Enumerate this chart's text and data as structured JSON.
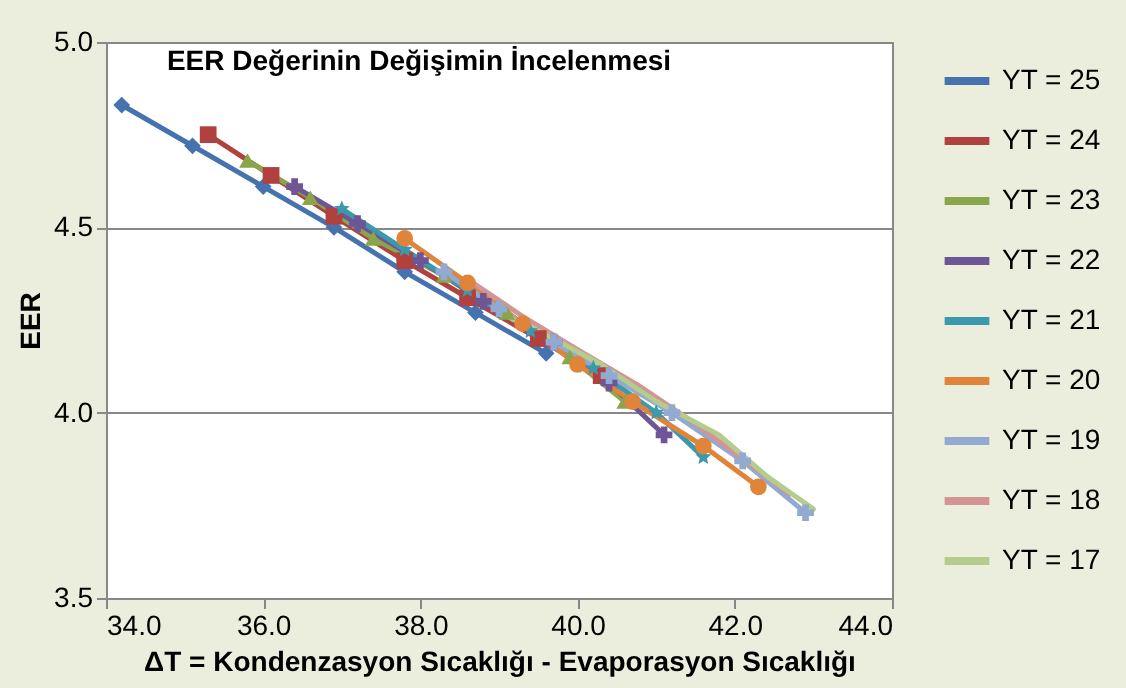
{
  "chart_data": {
    "type": "line",
    "title": "EER Değerinin Değişimin  İncelenmesi",
    "xlabel": "ΔT = Kondenzasyon Sıcaklığı  -  Evaporasyon Sıcaklığı",
    "ylabel": "EER",
    "xlim": [
      34,
      44
    ],
    "xticks": [
      {
        "value": 34,
        "label": "34.0"
      },
      {
        "value": 36,
        "label": "36.0"
      },
      {
        "value": 38,
        "label": "38.0"
      },
      {
        "value": 40,
        "label": "40.0"
      },
      {
        "value": 42,
        "label": "42.0"
      },
      {
        "value": 44,
        "label": "44.0"
      }
    ],
    "ylim": [
      3.5,
      5.0
    ],
    "yticks": [
      3.5,
      {
        "value": 4.0,
        "label": "4.0"
      },
      4.5,
      {
        "value": 5.0,
        "label": "5.0"
      }
    ],
    "grid": "y",
    "legend": "right",
    "series": [
      {
        "name": "YT = 25",
        "color": "#4672b0",
        "marker": "diamond",
        "x": [
          34.2,
          35.1,
          36.0,
          36.9,
          37.8,
          38.7,
          39.6
        ],
        "values": [
          4.83,
          4.72,
          4.61,
          4.5,
          4.38,
          4.27,
          4.16
        ]
      },
      {
        "name": "YT = 24",
        "color": "#b0413e",
        "marker": "square",
        "x": [
          35.3,
          36.1,
          36.9,
          37.8,
          38.6,
          39.5,
          40.3
        ],
        "values": [
          4.75,
          4.64,
          4.53,
          4.41,
          4.31,
          4.2,
          4.1
        ]
      },
      {
        "name": "YT = 23",
        "color": "#8aa64a",
        "marker": "triangle",
        "x": [
          35.8,
          36.6,
          37.4,
          38.3,
          39.1,
          39.9,
          40.6
        ],
        "values": [
          4.68,
          4.58,
          4.47,
          4.37,
          4.27,
          4.15,
          4.03
        ]
      },
      {
        "name": "YT = 22",
        "color": "#6e5596",
        "marker": "cross",
        "x": [
          36.4,
          37.2,
          38.0,
          38.8,
          39.7,
          40.4,
          41.1
        ],
        "values": [
          4.61,
          4.51,
          4.41,
          4.3,
          4.19,
          4.08,
          3.94
        ]
      },
      {
        "name": "YT = 21",
        "color": "#3b99ad",
        "marker": "star",
        "x": [
          37.0,
          37.8,
          38.6,
          39.4,
          40.2,
          41.0,
          41.6
        ],
        "values": [
          4.55,
          4.44,
          4.33,
          4.22,
          4.12,
          4.0,
          3.88
        ]
      },
      {
        "name": "YT = 20",
        "color": "#e0843a",
        "marker": "circle",
        "x": [
          37.8,
          38.6,
          39.3,
          40.0,
          40.7,
          41.6,
          42.3
        ],
        "values": [
          4.47,
          4.35,
          4.24,
          4.13,
          4.03,
          3.91,
          3.8
        ]
      },
      {
        "name": "YT = 19",
        "color": "#92a9d2",
        "marker": "cross",
        "x": [
          38.3,
          39.0,
          39.7,
          40.4,
          41.2,
          42.1,
          42.9
        ],
        "values": [
          4.38,
          4.28,
          4.19,
          4.1,
          4.0,
          3.87,
          3.73
        ]
      },
      {
        "name": "YT = 18",
        "color": "#d39594",
        "marker": "none",
        "x": [
          38.6,
          39.3,
          40.0,
          40.8,
          41.5,
          42.2,
          42.7
        ],
        "values": [
          4.36,
          4.26,
          4.17,
          4.07,
          3.97,
          3.86,
          3.78
        ]
      },
      {
        "name": "YT = 17",
        "color": "#b4cc8c",
        "marker": "none",
        "x": [
          39.0,
          39.6,
          40.3,
          41.0,
          41.8,
          42.4,
          43.0
        ],
        "values": [
          4.27,
          4.21,
          4.13,
          4.03,
          3.94,
          3.83,
          3.74
        ]
      }
    ]
  }
}
